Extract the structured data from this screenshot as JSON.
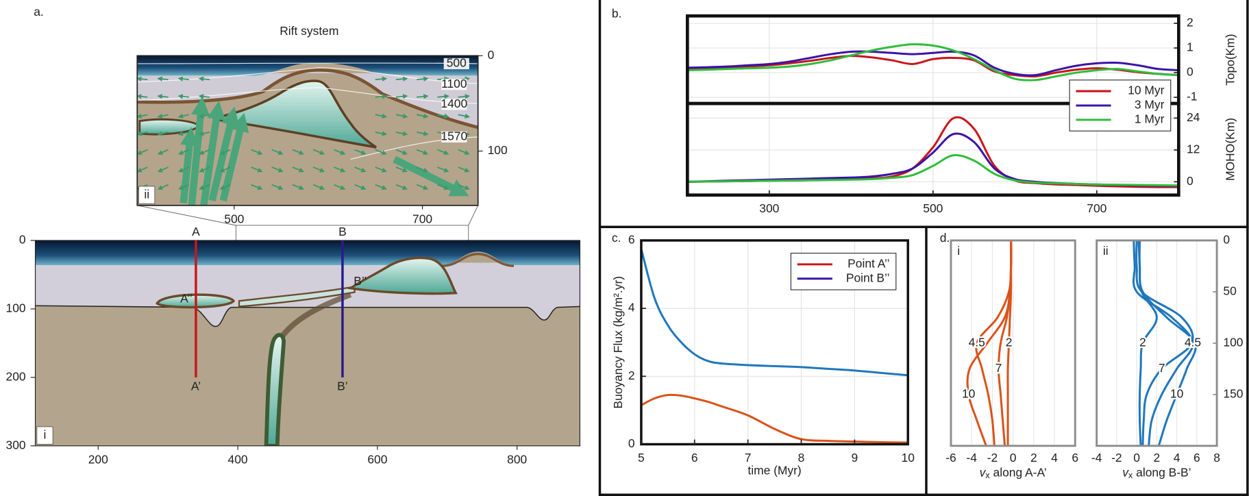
{
  "chart_data": [
    {
      "type": "section",
      "label": "a.",
      "title": "Rift system",
      "subplots": [
        {
          "label": "ii",
          "xlim": [
            397,
            759
          ],
          "ylim": [
            0,
            157
          ],
          "xticks": [
            500,
            700
          ],
          "yticks": [
            0,
            100
          ],
          "isotherm_labels": [
            "500",
            "1100",
            "1400",
            "1570"
          ]
        },
        {
          "label": "i",
          "xlim": [
            110,
            890
          ],
          "ylim": [
            0,
            300
          ],
          "xticks": [
            200,
            400,
            600,
            800
          ],
          "yticks": [
            0,
            100,
            200,
            300
          ],
          "profiles": [
            {
              "top": "A",
              "bottom": "A’",
              "point": "A’’",
              "x": 340,
              "depth": [
                0,
                200
              ],
              "color": "#c8161d"
            },
            {
              "top": "B",
              "bottom": "B’",
              "point": "B’’",
              "x": 550,
              "depth": [
                0,
                200
              ],
              "color": "#2b1a8c"
            }
          ]
        }
      ]
    },
    {
      "type": "line",
      "label": "b.",
      "legend": "right",
      "grid": true,
      "x": [
        200,
        225,
        250,
        275,
        300,
        325,
        350,
        375,
        400,
        425,
        450,
        475,
        500,
        525,
        550,
        575,
        600,
        625,
        650,
        675,
        700,
        725,
        750,
        775,
        800
      ],
      "xlim": [
        200,
        800
      ],
      "xticks": [
        300,
        500,
        700
      ],
      "axes": [
        {
          "ylabel": "Topo(Km)",
          "ylim": [
            -1.25,
            2.3
          ],
          "yticks": [
            -1,
            0,
            1,
            2
          ],
          "series": [
            {
              "name": "10 Myr",
              "color": "#c8161d",
              "values": [
                0.15,
                0.17,
                0.2,
                0.25,
                0.3,
                0.38,
                0.48,
                0.6,
                0.68,
                0.62,
                0.5,
                0.35,
                0.55,
                0.6,
                0.5,
                0.05,
                -0.1,
                -0.15,
                0.0,
                0.12,
                0.18,
                0.12,
                0.02,
                -0.05,
                -0.1
              ]
            },
            {
              "name": "3 Myr",
              "color": "#3a14a8",
              "values": [
                0.2,
                0.22,
                0.25,
                0.3,
                0.35,
                0.45,
                0.6,
                0.75,
                0.85,
                0.85,
                0.8,
                0.75,
                0.8,
                0.85,
                0.7,
                0.2,
                -0.05,
                -0.1,
                0.1,
                0.28,
                0.38,
                0.4,
                0.3,
                0.15,
                0.1
              ]
            },
            {
              "name": "1 Myr",
              "color": "#2ebd3a",
              "values": [
                0.1,
                0.12,
                0.15,
                0.18,
                0.2,
                0.25,
                0.35,
                0.5,
                0.7,
                0.9,
                1.05,
                1.15,
                1.1,
                0.9,
                0.55,
                0.1,
                -0.25,
                -0.3,
                -0.15,
                0.0,
                0.1,
                0.15,
                0.05,
                -0.05,
                -0.1
              ]
            }
          ]
        },
        {
          "ylabel": "MOHO(Km)",
          "ylim": [
            -5,
            29.5
          ],
          "yticks": [
            0,
            12,
            24
          ],
          "series": [
            {
              "color": "#c8161d",
              "values": [
                0,
                0.1,
                0.2,
                0.3,
                0.4,
                0.5,
                0.6,
                0.8,
                1.0,
                1.3,
                2,
                5,
                13,
                24,
                20,
                6,
                0.5,
                -0.5,
                -1,
                -1.2,
                -1.5,
                -1.7,
                -1.9,
                -2,
                -2
              ]
            },
            {
              "color": "#3a14a8",
              "values": [
                0,
                0.2,
                0.4,
                0.6,
                0.8,
                1,
                1.2,
                1.4,
                1.6,
                2,
                3,
                5,
                11,
                18,
                15,
                5,
                1,
                0,
                -0.5,
                -0.8,
                -1,
                -1.2,
                -1.4,
                -1.5,
                -1.6
              ]
            },
            {
              "color": "#2ebd3a",
              "values": [
                0,
                0.1,
                0.2,
                0.3,
                0.4,
                0.5,
                0.6,
                0.7,
                0.8,
                1,
                1.5,
                2.5,
                6,
                10,
                8,
                3,
                0.5,
                -0.3,
                -0.6,
                -0.8,
                -1,
                -1.1,
                -1.2,
                -1.3,
                -1.4
              ]
            }
          ]
        }
      ]
    },
    {
      "type": "line",
      "label": "c.",
      "legend": "upper right",
      "grid": true,
      "x": [
        5,
        5.25,
        5.5,
        5.75,
        6,
        6.25,
        6.5,
        7,
        7.5,
        8,
        8.5,
        9,
        9.5,
        10
      ],
      "xlim": [
        5,
        10
      ],
      "xticks": [
        5,
        6,
        7,
        8,
        9,
        10
      ],
      "xlabel": "time (Myr)",
      "axes": [
        {
          "ylabel": "Buoyancy Flux (kg/m².yr)",
          "ylim": [
            0,
            6
          ],
          "yticks": [
            0,
            2,
            4,
            6
          ],
          "series": [
            {
              "name": "Point A’’",
              "color": "#d95319",
              "legend_color": "#c8161d",
              "values": [
                1.15,
                1.35,
                1.45,
                1.43,
                1.35,
                1.25,
                1.12,
                0.85,
                0.45,
                0.15,
                0.1,
                0.08,
                0.06,
                0.05
              ]
            },
            {
              "name": "Point B’’",
              "color": "#1f77bd",
              "legend_color": "#3a14a8",
              "values": [
                5.75,
                4.3,
                3.5,
                3.0,
                2.65,
                2.45,
                2.38,
                2.33,
                2.3,
                2.27,
                2.22,
                2.17,
                2.1,
                2.03
              ]
            }
          ]
        }
      ]
    },
    {
      "type": "profile",
      "label": "d.",
      "depth": [
        0,
        25,
        50,
        75,
        100,
        125,
        150,
        175,
        200
      ],
      "ylim": [
        0,
        200
      ],
      "yticks": [
        0,
        50,
        100,
        150
      ],
      "axes": [
        {
          "label": "i",
          "xlim": [
            -6,
            6
          ],
          "xticks": [
            -6,
            -4,
            -2,
            0,
            2,
            4,
            6
          ],
          "xlabel": [
            "v",
            "x",
            " along A-A’"
          ],
          "color": "#d95319",
          "series": [
            {
              "name": "2",
              "values": [
                -0.2,
                -0.2,
                -0.2,
                -0.3,
                -0.4,
                -0.5,
                -0.5,
                -0.5,
                -0.5
              ]
            },
            {
              "name": "4.5",
              "values": [
                -0.2,
                -0.2,
                -0.4,
                -1.5,
                -3.5,
                -3.0,
                -2.4,
                -2.0,
                -1.8
              ]
            },
            {
              "name": "7",
              "values": [
                -0.2,
                -0.2,
                -0.3,
                -0.6,
                -1.2,
                -1.4,
                -1.2,
                -1.0,
                -0.8
              ]
            },
            {
              "name": "10",
              "values": [
                -0.2,
                -0.2,
                -0.3,
                -0.8,
                -2.5,
                -4.2,
                -4.3,
                -3.5,
                -2.6
              ]
            }
          ]
        },
        {
          "label": "ii",
          "xlim": [
            -4,
            8
          ],
          "xticks": [
            -4,
            -2,
            0,
            2,
            4,
            6,
            8
          ],
          "xlabel": [
            "v",
            "x",
            " along B-B’"
          ],
          "color": "#1f77bd",
          "series": [
            {
              "name": "2",
              "values": [
                0.2,
                0.3,
                0.5,
                2.0,
                0.6,
                0.4,
                0.3,
                0.3,
                0.4
              ]
            },
            {
              "name": "4.5",
              "values": [
                -0.3,
                -0.2,
                0,
                3.5,
                5.6,
                4.0,
                2.5,
                1.5,
                1.2
              ]
            },
            {
              "name": "7",
              "values": [
                0.0,
                0.0,
                0.5,
                4.5,
                5.5,
                2.5,
                1.0,
                0.7,
                0.6
              ]
            },
            {
              "name": "10",
              "values": [
                0.3,
                0.3,
                0.6,
                3.0,
                5.8,
                5.0,
                4.0,
                3.0,
                2.2
              ]
            }
          ]
        }
      ]
    }
  ]
}
